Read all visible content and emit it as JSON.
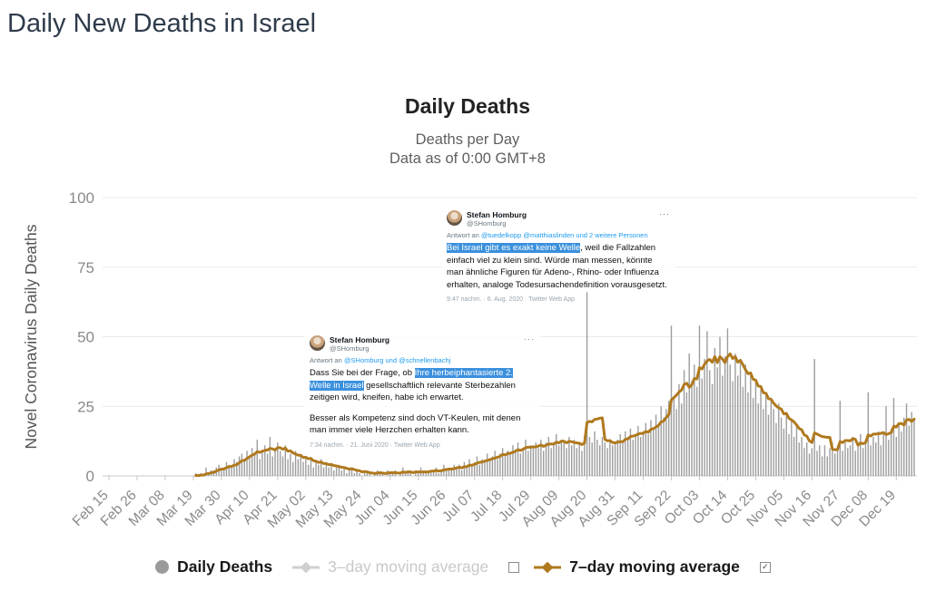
{
  "page": {
    "title": "Daily New Deaths in Israel"
  },
  "chart": {
    "title": "Daily Deaths",
    "subtitle_line1": "Deaths per Day",
    "subtitle_line2": "Data as of 0:00 GMT+8"
  },
  "chart_data": {
    "type": "bar",
    "title": "Daily Deaths",
    "subtitle": [
      "Deaths per Day",
      "Data as of 0:00 GMT+8"
    ],
    "xlabel": "",
    "ylabel": "Novel Coronavirus Daily Deaths",
    "ylim": [
      0,
      100
    ],
    "y_ticks": [
      0,
      25,
      50,
      75,
      100
    ],
    "grid": true,
    "legend_position": "bottom",
    "x_start": "Feb 15",
    "x_end": "Dec 26",
    "x_tick_interval_days": 11,
    "x_tick_labels": [
      "Feb 15",
      "Feb 26",
      "Mar 08",
      "Mar 19",
      "Mar 30",
      "Apr 10",
      "Apr 21",
      "May 02",
      "May 13",
      "May 24",
      "Jun 04",
      "Jun 15",
      "Jun 26",
      "Jul 07",
      "Jul 18",
      "Jul 29",
      "Aug 09",
      "Aug 20",
      "Aug 31",
      "Sep 11",
      "Sep 22",
      "Oct 03",
      "Oct 14",
      "Oct 25",
      "Nov 05",
      "Nov 16",
      "Nov 27",
      "Dec 08",
      "Dec 19"
    ],
    "series": [
      {
        "name": "Daily Deaths",
        "type": "bar",
        "color": "#9d9d9d",
        "values": [
          0,
          0,
          0,
          0,
          0,
          0,
          0,
          0,
          0,
          0,
          0,
          0,
          0,
          0,
          0,
          0,
          0,
          0,
          0,
          0,
          0,
          0,
          0,
          0,
          0,
          0,
          0,
          0,
          0,
          0,
          0,
          0,
          0,
          0,
          1,
          0,
          1,
          0,
          3,
          1,
          2,
          2,
          3,
          4,
          2,
          3,
          5,
          4,
          3,
          6,
          5,
          7,
          8,
          6,
          9,
          7,
          10,
          8,
          13,
          6,
          9,
          11,
          8,
          14,
          7,
          10,
          12,
          9,
          7,
          11,
          6,
          8,
          5,
          9,
          6,
          7,
          5,
          7,
          4,
          6,
          3,
          5,
          4,
          6,
          3,
          4,
          3,
          4,
          2,
          3,
          4,
          2,
          3,
          1,
          2,
          3,
          1,
          2,
          1,
          0,
          2,
          1,
          1,
          0,
          1,
          2,
          1,
          1,
          0,
          2,
          1,
          1,
          2,
          0,
          1,
          3,
          1,
          2,
          1,
          0,
          2,
          1,
          3,
          1,
          2,
          1,
          2,
          2,
          3,
          1,
          2,
          4,
          2,
          3,
          2,
          4,
          3,
          4,
          2,
          5,
          3,
          6,
          4,
          5,
          7,
          4,
          6,
          5,
          8,
          6,
          7,
          9,
          6,
          8,
          10,
          7,
          9,
          8,
          11,
          9,
          12,
          8,
          10,
          13,
          9,
          11,
          10,
          12,
          10,
          13,
          9,
          12,
          14,
          10,
          12,
          15,
          11,
          13,
          12,
          10,
          14,
          11,
          13,
          10,
          12,
          9,
          13,
          66,
          14,
          12,
          16,
          13,
          11,
          14,
          12,
          10,
          13,
          11,
          12,
          13,
          15,
          12,
          16,
          14,
          17,
          13,
          15,
          18,
          14,
          16,
          19,
          15,
          20,
          17,
          22,
          18,
          25,
          21,
          24,
          27,
          54,
          28,
          24,
          33,
          26,
          38,
          30,
          44,
          34,
          40,
          32,
          54,
          35,
          42,
          52,
          38,
          33,
          46,
          39,
          50,
          36,
          43,
          53,
          40,
          34,
          44,
          36,
          41,
          32,
          40,
          30,
          36,
          28,
          34,
          26,
          31,
          24,
          29,
          22,
          27,
          24,
          19,
          26,
          21,
          17,
          23,
          15,
          20,
          14,
          18,
          12,
          14,
          10,
          12,
          8,
          10,
          42,
          9,
          11,
          7,
          11,
          7,
          10,
          12,
          8,
          11,
          27,
          9,
          12,
          10,
          11,
          14,
          9,
          12,
          15,
          10,
          13,
          30,
          11,
          14,
          12,
          16,
          11,
          15,
          25,
          13,
          17,
          28,
          14,
          19,
          16,
          21,
          26,
          18,
          23,
          20
        ]
      },
      {
        "name": "3-day moving average",
        "type": "line",
        "color": "#cfcfcf",
        "visible": false
      },
      {
        "name": "7-day moving average",
        "type": "line",
        "color": "#b0791e",
        "visible": true,
        "window": 7,
        "derived_from": "Daily Deaths"
      }
    ]
  },
  "tweets": [
    {
      "name": "Stefan Homburg",
      "handle": "@SHomburg",
      "more_icon": "···",
      "reply_prefix": "Antwort an ",
      "reply_mentions": "@tuedelkopp @matthiaslinden und 2 weitere Personen",
      "body_pre": "",
      "body_highlight": "Bei Israel gibt es exakt keine Welle",
      "body_post": ", weil die Fallzahlen einfach viel zu klein sind. Würde man messen, könnte man ähnliche Figuren für Adeno-, Rhino- oder Influenza erhalten, analoge Todesursachendefinition vorausgesetzt.",
      "timestamp": "9:47 nachm. · 6. Aug. 2020 · Twitter Web App"
    },
    {
      "name": "Stefan Homburg",
      "handle": "@SHomburg",
      "more_icon": "···",
      "reply_prefix": "Antwort an ",
      "reply_mentions": "@SHomburg und @schnellenbachj",
      "body_pre": "Dass Sie bei der Frage, ob ",
      "body_highlight": "Ihre herbeiphantasierte 2. Welle in Israel",
      "body_post": " gesellschaftlich relevante Sterbezahlen zeitigen wird, kneifen, habe ich erwartet.",
      "body_para2": "Besser als Kompetenz sind doch VT-Keulen, mit denen man immer viele Herzchen erhalten kann.",
      "timestamp": "7:34 nachm. · 21. Juni 2020 · Twitter Web App"
    }
  ],
  "legend": {
    "checked_glyph": "✓",
    "items": [
      {
        "label": "Daily Deaths",
        "marker": "circle",
        "color": "#9a9a9a",
        "active": true
      },
      {
        "label": "3–day moving average",
        "marker": "line-diamond",
        "color": "#cfcfcf",
        "active": false,
        "checkbox": "unchecked"
      },
      {
        "label": "7–day moving average",
        "marker": "line-diamond",
        "color": "#b0791e",
        "active": true,
        "checkbox": "checked"
      }
    ]
  }
}
